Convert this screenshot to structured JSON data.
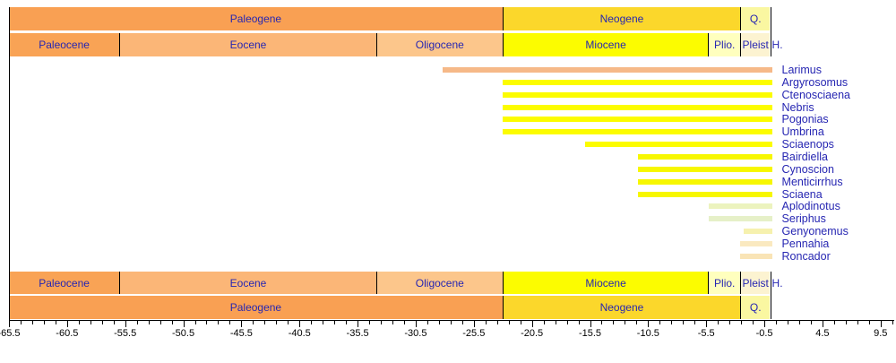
{
  "figure": {
    "description": "Stratigraphic range chart of sciaenid fish genera plotted against the Cenozoic geologic timescale (millions of years)"
  },
  "colors": {
    "label_text": "#2626B2",
    "tick_text": "#000000",
    "axis_line": "#000000",
    "background": "#FFFFFF"
  },
  "timescale": {
    "axis_start": -65.5,
    "axis_end": 9.5,
    "periods": [
      {
        "name": "Paleogene",
        "start": -65.5,
        "end": -23.03,
        "color": "#F9A053"
      },
      {
        "name": "Neogene",
        "start": -23.03,
        "end": -2.58,
        "color": "#FBD72B"
      },
      {
        "name": "Q.",
        "start": -2.58,
        "end": -0.01,
        "color": "#FAF7A1"
      }
    ],
    "epochs": [
      {
        "name": "Paleocene",
        "start": -65.5,
        "end": -56.0,
        "color": "#F9A355"
      },
      {
        "name": "Eocene",
        "start": -56.0,
        "end": -33.9,
        "color": "#FBB677"
      },
      {
        "name": "Oligocene",
        "start": -33.9,
        "end": -23.03,
        "color": "#FCC68B"
      },
      {
        "name": "Miocene",
        "start": -23.03,
        "end": -5.33,
        "color": "#FCFC00"
      },
      {
        "name": "Plio.",
        "start": -5.33,
        "end": -2.58,
        "color": "#FFFFBE"
      },
      {
        "name": "Pleist",
        "start": -2.58,
        "end": -0.01,
        "color": "#FCF3D1"
      },
      {
        "name": "H.",
        "start": -0.01,
        "end": 0.0,
        "color": "#FFFFFF",
        "label_outside": true
      }
    ]
  },
  "chart_data": {
    "type": "bar",
    "subtype": "taxon-range-chart",
    "x_unit": "Ma (millions of years, negative = past)",
    "xlim": [
      -65.5,
      10.5
    ],
    "x_ticks_major": [
      -65.5,
      -60.5,
      -55.5,
      -50.5,
      -45.5,
      -40.5,
      -35.5,
      -30.5,
      -25.5,
      -20.5,
      -15.5,
      -10.5,
      -5.5,
      -0.5,
      4.5,
      9.5
    ],
    "x_tick_minor_step": 1,
    "grid": false,
    "series": [
      {
        "name": "Larimus",
        "start": -28.2,
        "end": 0,
        "color": "#F6B988"
      },
      {
        "name": "Argyrosomus",
        "start": -23.03,
        "end": 0,
        "color": "#FCFC00"
      },
      {
        "name": "Ctenosciaena",
        "start": -23.03,
        "end": 0,
        "color": "#FCFC00"
      },
      {
        "name": "Nebris",
        "start": -23.03,
        "end": 0,
        "color": "#FCFC00"
      },
      {
        "name": "Pogonias",
        "start": -23.03,
        "end": 0,
        "color": "#FCFC00"
      },
      {
        "name": "Umbrina",
        "start": -23.03,
        "end": 0,
        "color": "#FCFC00"
      },
      {
        "name": "Sciaenops",
        "start": -15.9,
        "end": 0,
        "color": "#FCFC00"
      },
      {
        "name": "Bairdiella",
        "start": -11.4,
        "end": 0,
        "color": "#F7F700"
      },
      {
        "name": "Cynoscion",
        "start": -11.4,
        "end": 0,
        "color": "#F7F700"
      },
      {
        "name": "Menticirrhus",
        "start": -11.4,
        "end": 0,
        "color": "#F7F700"
      },
      {
        "name": "Sciaena",
        "start": -11.4,
        "end": 0,
        "color": "#F7F700"
      },
      {
        "name": "Aplodinotus",
        "start": -5.3,
        "end": 0,
        "color": "#ECF3BE"
      },
      {
        "name": "Seriphus",
        "start": -5.3,
        "end": 0,
        "color": "#E6F0C8"
      },
      {
        "name": "Genyonemus",
        "start": -2.3,
        "end": 0,
        "color": "#F6F1AE"
      },
      {
        "name": "Pennahia",
        "start": -2.6,
        "end": 0,
        "color": "#FAE9C0"
      },
      {
        "name": "Roncador",
        "start": -2.6,
        "end": 0,
        "color": "#F9E4B6"
      }
    ]
  }
}
